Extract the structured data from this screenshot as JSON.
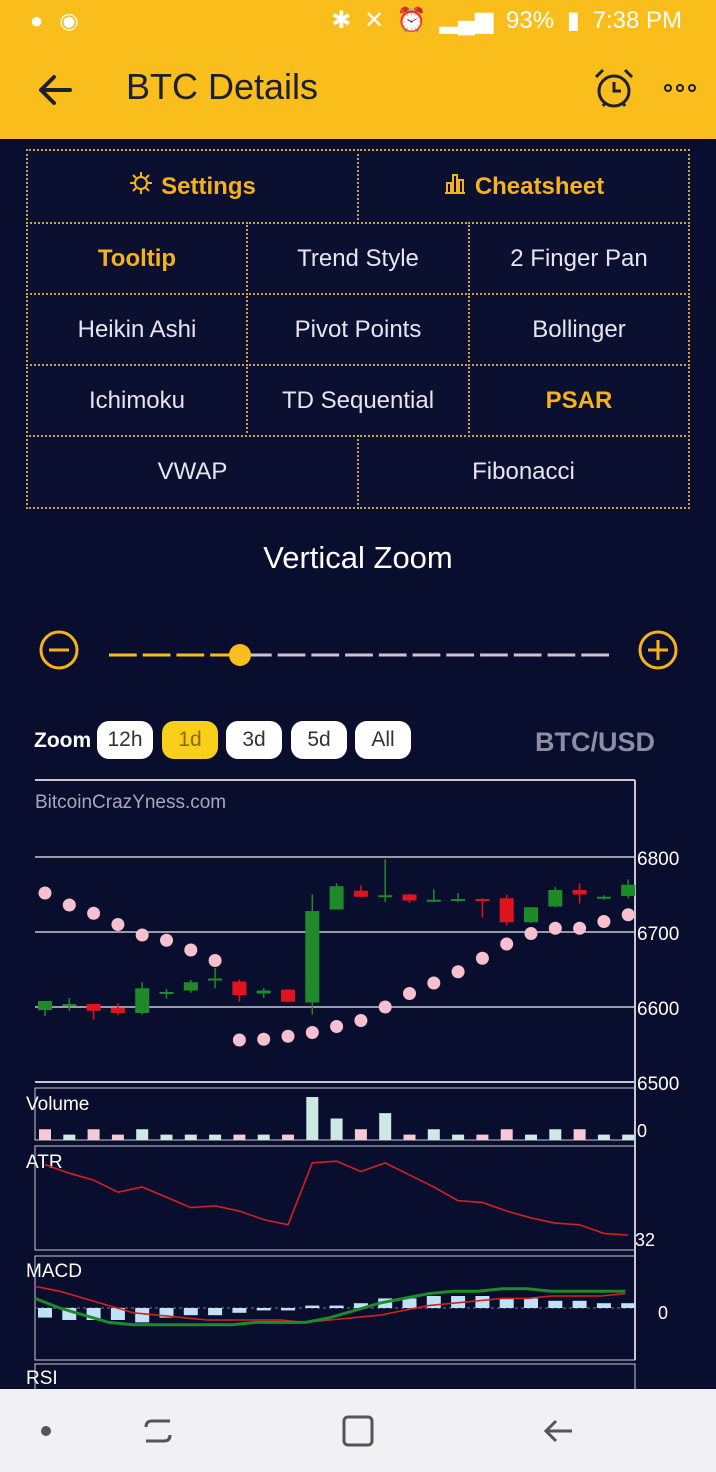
{
  "status": {
    "battery": "93%",
    "time": "7:38 PM",
    "left_icons": [
      "notification-icon",
      "wifi-hotspot-icon"
    ],
    "right_icons": [
      "bluetooth-icon",
      "mute-icon",
      "alarm-icon",
      "data-icon",
      "signal-icon",
      "battery-icon"
    ]
  },
  "appbar": {
    "title": "BTC Details",
    "back_icon": "back-arrow-icon",
    "alarm_icon": "alarm-clock-icon",
    "more_icon": "more-icon"
  },
  "options": {
    "settings": "Settings",
    "cheatsheet": "Cheatsheet",
    "tooltip": "Tooltip",
    "trend_style": "Trend Style",
    "two_finger_pan": "2 Finger Pan",
    "heikin_ashi": "Heikin Ashi",
    "pivot_points": "Pivot Points",
    "bollinger": "Bollinger",
    "ichimoku": "Ichimoku",
    "td_sequential": "TD Sequential",
    "psar": "PSAR",
    "vwap": "VWAP",
    "fibonacci": "Fibonacci",
    "active": [
      "Tooltip",
      "PSAR"
    ]
  },
  "vertical_zoom": {
    "title": "Vertical Zoom",
    "level_fraction": 0.27
  },
  "zoom": {
    "label": "Zoom",
    "options": [
      "12h",
      "1d",
      "3d",
      "5d",
      "All"
    ],
    "selected": "1d"
  },
  "pair": "BTC/USD",
  "colors": {
    "accent": "#f9be1b",
    "background": "#0a0e2e",
    "up": "#1f8a2a",
    "down": "#e0141e",
    "psar": "#f7c0cf",
    "vol_up": "#cce9e2",
    "vol_down": "#f7c9d3",
    "macd_hist": "#bfe3f5",
    "macd_line": "#1f8a2a",
    "signal_line": "#d42020",
    "atr_line": "#d42020"
  },
  "chart_data": {
    "type": "candlestick",
    "watermark": "BitcoinCrazYness.com",
    "y_ticks": [
      6800,
      6700,
      6600,
      6500
    ],
    "ylim": [
      6500,
      6800
    ],
    "candles": [
      {
        "o": 6596,
        "h": 6607,
        "l": 6588,
        "c": 6608
      },
      {
        "o": 6603,
        "h": 6612,
        "l": 6595,
        "c": 6604
      },
      {
        "o": 6604,
        "h": 6603,
        "l": 6583,
        "c": 6595
      },
      {
        "o": 6599,
        "h": 6605,
        "l": 6589,
        "c": 6592
      },
      {
        "o": 6592,
        "h": 6633,
        "l": 6590,
        "c": 6625
      },
      {
        "o": 6619,
        "h": 6624,
        "l": 6611,
        "c": 6620
      },
      {
        "o": 6622,
        "h": 6636,
        "l": 6619,
        "c": 6633
      },
      {
        "o": 6636,
        "h": 6652,
        "l": 6625,
        "c": 6638
      },
      {
        "o": 6634,
        "h": 6637,
        "l": 6607,
        "c": 6616
      },
      {
        "o": 6618,
        "h": 6625,
        "l": 6612,
        "c": 6622
      },
      {
        "o": 6623,
        "h": 6624,
        "l": 6606,
        "c": 6607
      },
      {
        "o": 6606,
        "h": 6750,
        "l": 6590,
        "c": 6728
      },
      {
        "o": 6730,
        "h": 6765,
        "l": 6730,
        "c": 6761
      },
      {
        "o": 6755,
        "h": 6762,
        "l": 6747,
        "c": 6747
      },
      {
        "o": 6747,
        "h": 6797,
        "l": 6740,
        "c": 6749
      },
      {
        "o": 6750,
        "h": 6751,
        "l": 6739,
        "c": 6742
      },
      {
        "o": 6741,
        "h": 6757,
        "l": 6740,
        "c": 6743
      },
      {
        "o": 6743,
        "h": 6752,
        "l": 6740,
        "c": 6744
      },
      {
        "o": 6744,
        "h": 6745,
        "l": 6719,
        "c": 6743
      },
      {
        "o": 6745,
        "h": 6750,
        "l": 6709,
        "c": 6713
      },
      {
        "o": 6713,
        "h": 6730,
        "l": 6712,
        "c": 6733
      },
      {
        "o": 6734,
        "h": 6760,
        "l": 6733,
        "c": 6756
      },
      {
        "o": 6756,
        "h": 6765,
        "l": 6738,
        "c": 6750
      },
      {
        "o": 6746,
        "h": 6749,
        "l": 6743,
        "c": 6747
      },
      {
        "o": 6748,
        "h": 6770,
        "l": 6745,
        "c": 6763
      }
    ],
    "psar": [
      6752,
      6736,
      6725,
      6710,
      6696,
      6689,
      6676,
      6662,
      6556,
      6557,
      6561,
      6566,
      6574,
      6582,
      6600,
      6618,
      6632,
      6647,
      6665,
      6684,
      6698,
      6705,
      6705,
      6714,
      6723
    ],
    "volume": {
      "label": "Volume",
      "tick": "0",
      "values": [
        2,
        1,
        2,
        1,
        2,
        1,
        1,
        1,
        1,
        1,
        1,
        8,
        4,
        2,
        5,
        1,
        2,
        1,
        1,
        2,
        1,
        2,
        2,
        1,
        1
      ],
      "up": [
        false,
        true,
        false,
        false,
        true,
        true,
        true,
        true,
        false,
        true,
        false,
        true,
        true,
        false,
        true,
        false,
        true,
        true,
        false,
        false,
        true,
        true,
        false,
        true,
        true
      ]
    },
    "atr": {
      "label": "ATR",
      "tick": "32",
      "values": [
        65,
        60,
        56,
        49,
        52,
        46,
        40,
        41,
        38,
        33,
        30,
        66,
        67,
        61,
        66,
        59,
        52,
        44,
        43,
        38,
        34,
        31,
        30,
        25,
        24
      ]
    },
    "macd": {
      "label": "MACD",
      "tick": "0",
      "histogram": [
        -4,
        -5,
        -5,
        -5,
        -6,
        -4,
        -3,
        -3,
        -2,
        -1,
        -1,
        1,
        1,
        2,
        4,
        4,
        5,
        5,
        5,
        4,
        4,
        3,
        3,
        2,
        2
      ],
      "macd_line": [
        4,
        0,
        -3,
        -6,
        -7,
        -7,
        -7,
        -7,
        -7,
        -6,
        -6,
        -6,
        -4,
        -1,
        2,
        4,
        6,
        7,
        7,
        8,
        8,
        7,
        7,
        7,
        7
      ],
      "signal_line": [
        9,
        7,
        4,
        1,
        -2,
        -3,
        -4,
        -5,
        -5,
        -5,
        -5,
        -6,
        -5,
        -4,
        -3,
        -1,
        1,
        2,
        3,
        4,
        4,
        5,
        5,
        5,
        6
      ]
    },
    "rsi": {
      "label": "RSI"
    }
  },
  "nav": {
    "recent_icon": "recent-apps-icon",
    "home_icon": "home-icon",
    "back_icon": "nav-back-icon",
    "dot_icon": "nav-dot-icon"
  }
}
